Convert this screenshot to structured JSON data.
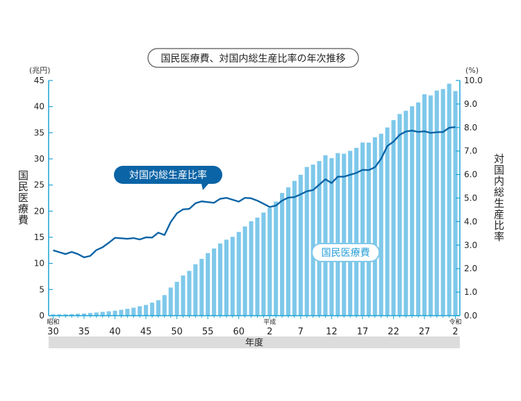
{
  "chart_data": {
    "type": "bar+line",
    "title": "国民医療費、対国内総生産比率の年次推移",
    "y_left_unit": "(兆円)",
    "y_right_unit": "(%)",
    "y_left_label": "国民医療費",
    "y_right_label": "対国内総生産比率",
    "xlabel": "年度",
    "ylim_left": [
      0,
      45
    ],
    "ylim_right": [
      0,
      10
    ],
    "y_left_ticks": [
      "0",
      "5",
      "10",
      "15",
      "20",
      "25",
      "30",
      "35",
      "40",
      "45"
    ],
    "y_right_ticks": [
      "0.0",
      "1.0",
      "2.0",
      "3.0",
      "4.0",
      "5.0",
      "6.0",
      "7.0",
      "8.0",
      "9.0",
      "10.0"
    ],
    "x_ticks": [
      {
        "index": 0,
        "label": "30",
        "era": "昭和"
      },
      {
        "index": 5,
        "label": "35"
      },
      {
        "index": 10,
        "label": "40"
      },
      {
        "index": 15,
        "label": "45"
      },
      {
        "index": 20,
        "label": "50"
      },
      {
        "index": 25,
        "label": "55"
      },
      {
        "index": 30,
        "label": "60"
      },
      {
        "index": 35,
        "label": "2",
        "era": "平成"
      },
      {
        "index": 40,
        "label": "7"
      },
      {
        "index": 45,
        "label": "12"
      },
      {
        "index": 50,
        "label": "17"
      },
      {
        "index": 55,
        "label": "22"
      },
      {
        "index": 60,
        "label": "27"
      },
      {
        "index": 65,
        "label": "2",
        "era": "令和"
      }
    ],
    "series": [
      {
        "name": "国民医療費",
        "type": "bar",
        "axis": "left",
        "color": "#7ec8ea",
        "values": [
          0.24,
          0.26,
          0.28,
          0.31,
          0.37,
          0.41,
          0.51,
          0.61,
          0.74,
          0.84,
          0.95,
          1.12,
          1.31,
          1.52,
          1.8,
          2.05,
          2.5,
          2.96,
          3.94,
          5.38,
          6.48,
          7.69,
          8.57,
          9.82,
          10.87,
          11.98,
          12.85,
          13.81,
          14.54,
          15.09,
          16.02,
          17.07,
          18.08,
          18.76,
          19.73,
          20.61,
          21.83,
          23.48,
          24.54,
          25.79,
          26.96,
          28.45,
          28.91,
          29.58,
          30.7,
          30.14,
          31.1,
          30.99,
          31.54,
          32.11,
          33.13,
          33.12,
          34.13,
          34.81,
          36.01,
          37.42,
          38.59,
          39.21,
          40.06,
          40.8,
          42.36,
          42.14,
          43.07,
          43.37,
          44.39,
          42.97
        ],
        "labels": [
          {
            "text": "国民医療費"
          }
        ]
      },
      {
        "name": "対国内総生産比率",
        "type": "line",
        "axis": "right",
        "color": "#0b64a6",
        "values": [
          2.78,
          2.7,
          2.62,
          2.71,
          2.62,
          2.48,
          2.54,
          2.79,
          2.91,
          3.1,
          3.31,
          3.29,
          3.27,
          3.3,
          3.24,
          3.33,
          3.32,
          3.53,
          3.43,
          3.98,
          4.35,
          4.52,
          4.54,
          4.78,
          4.86,
          4.83,
          4.8,
          4.97,
          5.01,
          4.93,
          4.85,
          5.01,
          4.99,
          4.89,
          4.76,
          4.62,
          4.68,
          4.89,
          5.02,
          5.04,
          5.16,
          5.29,
          5.34,
          5.57,
          5.8,
          5.64,
          5.91,
          5.91,
          5.99,
          6.07,
          6.2,
          6.19,
          6.31,
          6.67,
          7.21,
          7.4,
          7.69,
          7.83,
          7.87,
          7.81,
          7.84,
          7.77,
          7.8,
          7.81,
          7.99,
          8.02
        ],
        "labels": [
          {
            "text": "対国内総生産比率"
          }
        ]
      }
    ]
  }
}
